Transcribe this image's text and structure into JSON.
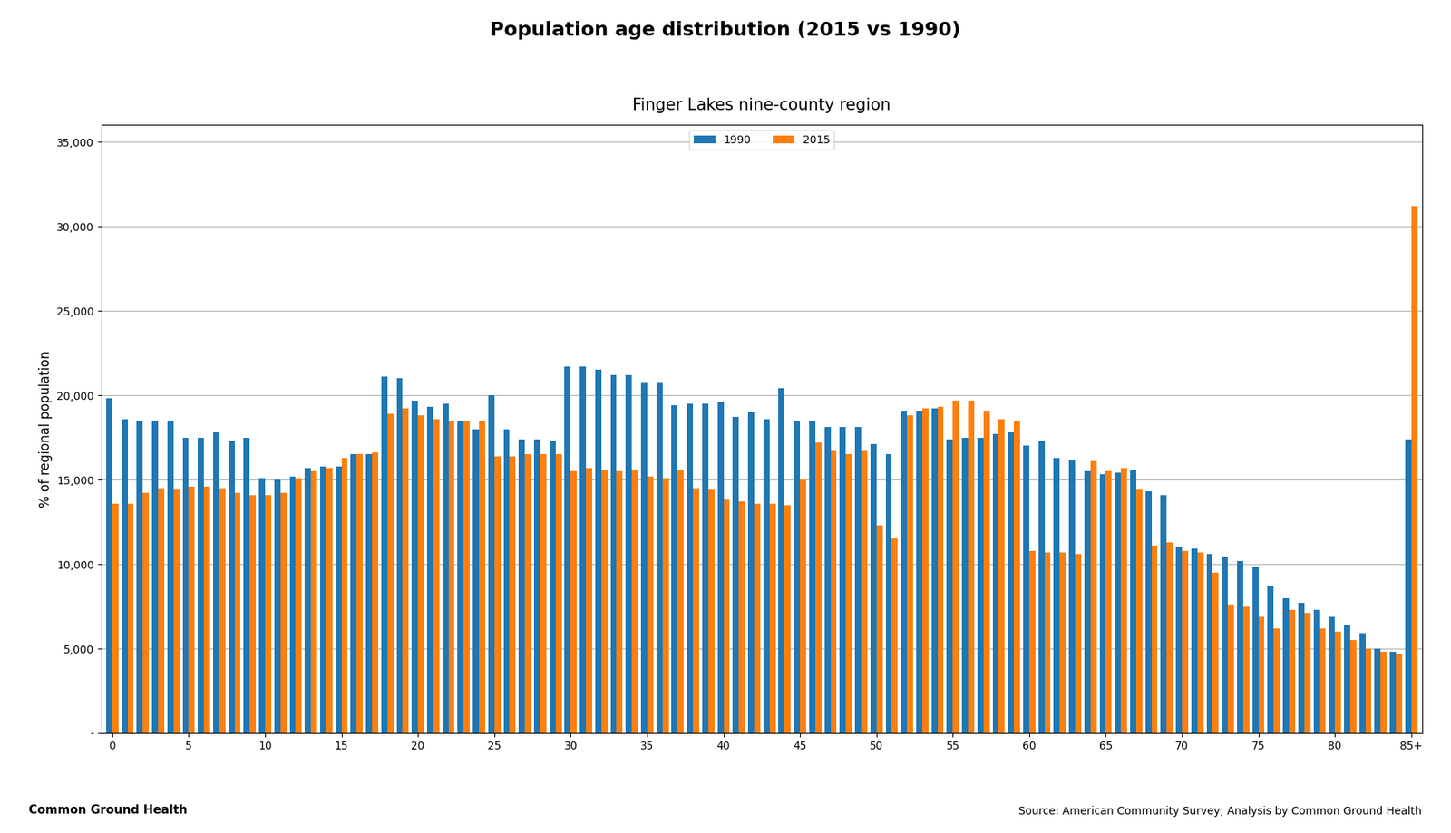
{
  "chart_data": {
    "type": "bar",
    "title": "Population age distribution (2015 vs 1990)",
    "subtitle": "Finger Lakes nine-county region",
    "y_label": "% of regional population",
    "annotations": [
      "Source: American Community Survey; Analysis by Common Ground Health",
      "Common Ground Health"
    ],
    "categories": [
      "0",
      null,
      null,
      null,
      null,
      "5",
      null,
      null,
      null,
      null,
      "10",
      null,
      null,
      null,
      null,
      "15",
      null,
      null,
      null,
      null,
      "20",
      null,
      null,
      null,
      null,
      "25",
      null,
      null,
      null,
      null,
      "30",
      null,
      null,
      null,
      null,
      "35",
      null,
      null,
      null,
      null,
      "40",
      null,
      null,
      null,
      null,
      "45",
      null,
      null,
      null,
      null,
      "50",
      null,
      null,
      null,
      null,
      "55",
      null,
      null,
      null,
      null,
      "60",
      null,
      null,
      null,
      null,
      "65",
      null,
      null,
      null,
      null,
      "70",
      null,
      null,
      null,
      null,
      "75",
      null,
      null,
      null,
      null,
      "80",
      null,
      null,
      null,
      null,
      "85+"
    ],
    "series": [
      {
        "name": "1990",
        "values": [
          19800,
          18600,
          18500,
          18500,
          18500,
          17500,
          17500,
          17800,
          17300,
          17500,
          15100,
          15000,
          15200,
          15700,
          15800,
          15800,
          16500,
          16500,
          21100,
          21000,
          19700,
          19300,
          19500,
          18500,
          18000,
          20000,
          18000,
          17400,
          17400,
          17300,
          21700,
          21700,
          21500,
          21200,
          21200,
          20800,
          20800,
          19400,
          19500,
          19500,
          19600,
          18700,
          19000,
          18600,
          20400,
          18500,
          18500,
          18100,
          18100,
          18100,
          17100,
          16500,
          19100,
          19100,
          19200,
          17400,
          17500,
          17500,
          17700,
          17800,
          17000,
          17300,
          16300,
          16200,
          15500,
          15300,
          15400,
          15600,
          14300,
          14100,
          11000,
          10900,
          10600,
          10400,
          10200,
          9800,
          8700,
          8000,
          7700,
          7300,
          6900,
          6400,
          5900,
          5000,
          4800,
          17400
        ]
      },
      {
        "name": "2015",
        "values": [
          13600,
          13600,
          14200,
          14500,
          14400,
          14600,
          14600,
          14500,
          14200,
          14100,
          14100,
          14200,
          15100,
          15500,
          15700,
          16300,
          16500,
          16600,
          18900,
          19200,
          18800,
          18600,
          18500,
          18500,
          18500,
          16400,
          16400,
          16500,
          16500,
          16500,
          15500,
          15700,
          15600,
          15500,
          15600,
          15200,
          15100,
          15600,
          14500,
          14400,
          13800,
          13700,
          13600,
          13600,
          13500,
          15000,
          17200,
          16700,
          16500,
          16700,
          12300,
          11500,
          18800,
          19200,
          19300,
          19700,
          19700,
          19100,
          18600,
          18500,
          10800,
          10700,
          10700,
          10600,
          16100,
          15500,
          15700,
          14400,
          11100,
          11300,
          10800,
          10700,
          9500,
          7600,
          7500,
          6900,
          6200,
          7300,
          7100,
          6200,
          6000,
          5500,
          5000,
          4800,
          4700,
          31200
        ]
      }
    ],
    "ylim": [
      0,
      36000
    ],
    "yticks": [
      {
        "value": 0,
        "label": "-"
      },
      {
        "value": 5000,
        "label": "5,000"
      },
      {
        "value": 10000,
        "label": "10,000"
      },
      {
        "value": 15000,
        "label": "15,000"
      },
      {
        "value": 20000,
        "label": "20,000"
      },
      {
        "value": 25000,
        "label": "25,000"
      },
      {
        "value": 30000,
        "label": "30,000"
      },
      {
        "value": 35000,
        "label": "35,000"
      }
    ],
    "grid": true,
    "legend": "upper center"
  }
}
